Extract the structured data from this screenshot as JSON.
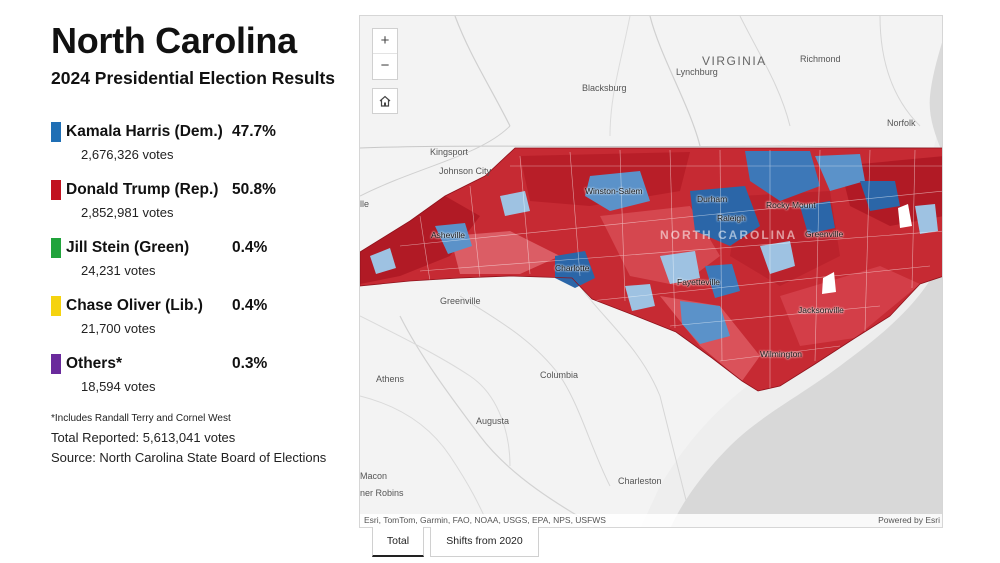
{
  "title": "North Carolina",
  "subtitle": "2024 Presidential Election Results",
  "candidates": [
    {
      "name": "Kamala Harris (Dem.)",
      "pct": "47.7%",
      "votes": "2,676,326 votes",
      "color": "#1f6fb5"
    },
    {
      "name": "Donald Trump (Rep.)",
      "pct": "50.8%",
      "votes": "2,852,981 votes",
      "color": "#c1121f"
    },
    {
      "name": "Jill Stein (Green)",
      "pct": "0.4%",
      "votes": "24,231 votes",
      "color": "#20a33b"
    },
    {
      "name": "Chase Oliver (Lib.)",
      "pct": "0.4%",
      "votes": "21,700 votes",
      "color": "#f5d30f"
    },
    {
      "name": "Others*",
      "pct": "0.3%",
      "votes": "18,594 votes",
      "color": "#6a2a9c"
    }
  ],
  "footnote": "*Includes Randall Terry and Cornel West",
  "total": "Total Reported: 5,613,041 votes",
  "source": "Source: North Carolina State Board of Elections",
  "map": {
    "state_labels": {
      "virginia": "VIRGINIA",
      "north_carolina": "NORTH CAROLINA"
    },
    "places": {
      "richmond": "Richmond",
      "lynchburg": "Lynchburg",
      "blacksburg": "Blacksburg",
      "norfolk": "Norfolk",
      "kingsport": "Kingsport",
      "johnson_city": "Johnson City",
      "knoxville_cut": "lle",
      "winston_salem": "Winston-Salem",
      "durham": "Durham",
      "rocky_mount": "Rocky Mount",
      "raleigh": "Raleigh",
      "greenville_nc": "Greenville",
      "asheville": "Asheville",
      "charlotte": "Charlotte",
      "fayetteville": "Fayetteville",
      "jacksonville": "Jacksonville",
      "wilmington": "Wilmington",
      "greenville_sc": "Greenville",
      "athens": "Athens",
      "columbia": "Columbia",
      "augusta": "Augusta",
      "macon": "Macon",
      "warner_robins": "ner Robins",
      "charleston": "Charleston"
    },
    "controls": {
      "zoom_in": "+",
      "zoom_out": "−"
    },
    "attribution": "Esri, TomTom, Garmin, FAO, NOAA, USGS, EPA, NPS, USFWS",
    "powered_by": "Powered by Esri",
    "colors": {
      "land": "#f2f2f2",
      "water": "#d9d9d9",
      "rep_dark": "#b01a25",
      "rep_mid": "#d63a45",
      "rep_light": "#e8868c",
      "dem_dark": "#2b66a8",
      "dem_mid": "#5b92c9",
      "dem_light": "#9ec2e2"
    }
  },
  "tabs": [
    {
      "label": "Total",
      "active": true
    },
    {
      "label": "Shifts from 2020",
      "active": false
    }
  ]
}
